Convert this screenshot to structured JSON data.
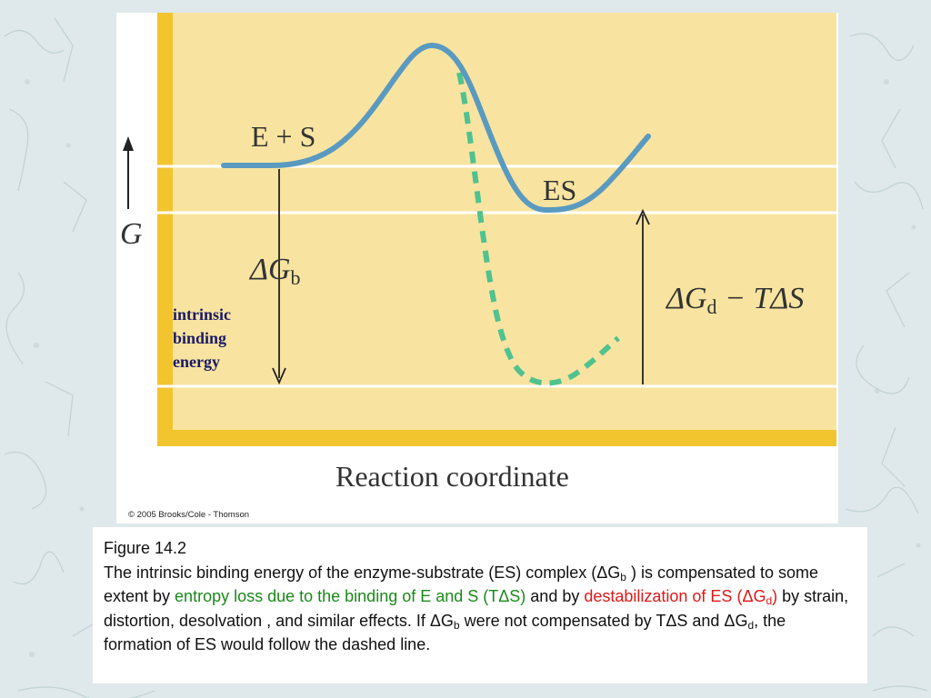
{
  "diagram": {
    "y_axis_label": "G",
    "x_axis_label": "Reaction coordinate",
    "label_es_left": "E + S",
    "label_es_complex": "ES",
    "dg_b": {
      "base": "ΔG",
      "sub": "b"
    },
    "dg_d": {
      "base": "ΔG",
      "sub": "d",
      "tail": " − TΔS"
    },
    "intrinsic_note": [
      "intrinsic",
      "binding",
      "energy"
    ],
    "copyright": "© 2005 Brooks/Cole - Thomson",
    "colors": {
      "panel_yellow": "#f8e4a0",
      "bar_yellow": "#f2c52f",
      "curve_blue": "#5a9ac0",
      "dashed_green": "#4fc28f"
    }
  },
  "caption": {
    "title": "Figure 14.2",
    "p1": "The intrinsic binding energy of the enzyme-substrate (ES) complex (ΔG",
    "p1_sub": "b",
    "p2": " ) is compensated to some extent by ",
    "p3_green": "entropy loss due to the binding of E and S (TΔS)",
    "p4": " and by ",
    "p5_red": "destabilization of ES (ΔG",
    "p5_red_sub": "d",
    "p5_red_end": ")",
    "p6": " by strain, distortion, desolvation , and similar effects. If ΔG",
    "p6_sub": "b",
    "p7": " were not compensated by TΔS and ΔG",
    "p7_sub": "d",
    "p8": ", the formation of ES would follow the dashed line."
  }
}
